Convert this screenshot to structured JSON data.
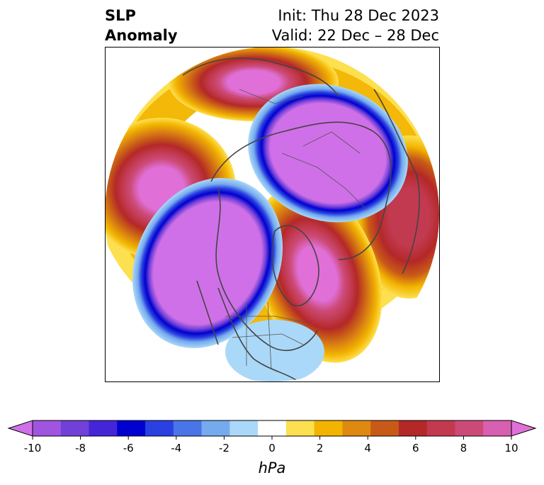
{
  "title": {
    "left_line1": "SLP",
    "left_line2": "Anomaly",
    "right_line1": "Init: Thu 28 Dec 2023",
    "right_line2": "Valid: 22 Dec – 28 Dec"
  },
  "colorbar": {
    "unit": "hPa",
    "ticks": [
      "-10",
      "-8",
      "-6",
      "-4",
      "-2",
      "0",
      "2",
      "4",
      "6",
      "8",
      "10"
    ],
    "colors": [
      "#d070e8",
      "#a055e0",
      "#7040d8",
      "#4525d8",
      "#0000d0",
      "#2a40e0",
      "#4a75e8",
      "#75aaee",
      "#aad8f8",
      "#ffffff",
      "#fde050",
      "#f2b400",
      "#de8a10",
      "#c85a18",
      "#b42828",
      "#c23a50",
      "#cc4a78",
      "#d860b0",
      "#e070d8"
    ],
    "extend": "both"
  }
}
